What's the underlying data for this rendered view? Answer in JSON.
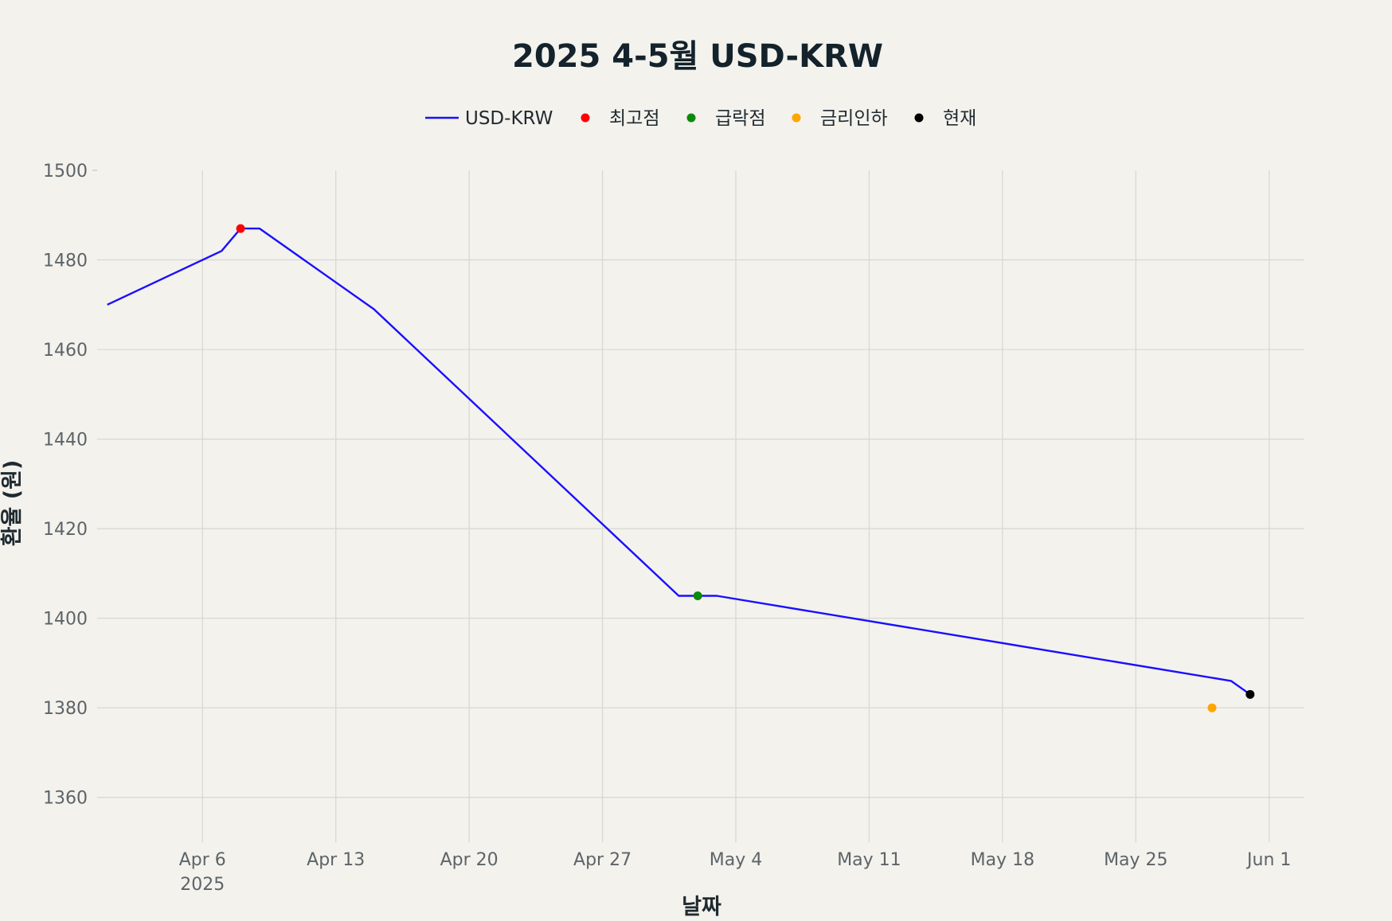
{
  "chart_data": {
    "type": "line",
    "title": "2025 4-5월 USD-KRW",
    "xlabel": "날짜",
    "ylabel": "환율 (원)",
    "x_tick_labels": [
      "Apr 6",
      "Apr 13",
      "Apr 20",
      "Apr 27",
      "May 4",
      "May 11",
      "May 18",
      "May 25",
      "Jun 1"
    ],
    "x_tick_year": "2025",
    "ylim": [
      1350,
      1500
    ],
    "y_ticks": [
      1360,
      1380,
      1400,
      1420,
      1440,
      1460,
      1480,
      1500
    ],
    "grid": true,
    "legend_position": "top-center",
    "series": [
      {
        "name": "USD-KRW",
        "color": "#1a0fff",
        "x": [
          "2025-04-01",
          "2025-04-07",
          "2025-04-08",
          "2025-04-09",
          "2025-04-15",
          "2025-05-01",
          "2025-05-02",
          "2025-05-03",
          "2025-05-30",
          "2025-05-31"
        ],
        "y": [
          1470,
          1482,
          1487,
          1487,
          1469,
          1405,
          1405,
          1405,
          1386,
          1383
        ]
      }
    ],
    "markers": [
      {
        "name": "최고점",
        "color": "#ff0000",
        "x": "2025-04-08",
        "y": 1487
      },
      {
        "name": "급락점",
        "color": "#0a8a0a",
        "x": "2025-05-02",
        "y": 1405
      },
      {
        "name": "금리인하",
        "color": "#ffa500",
        "x": "2025-05-29",
        "y": 1380
      },
      {
        "name": "현재",
        "color": "#000000",
        "x": "2025-05-31",
        "y": 1383
      }
    ]
  }
}
